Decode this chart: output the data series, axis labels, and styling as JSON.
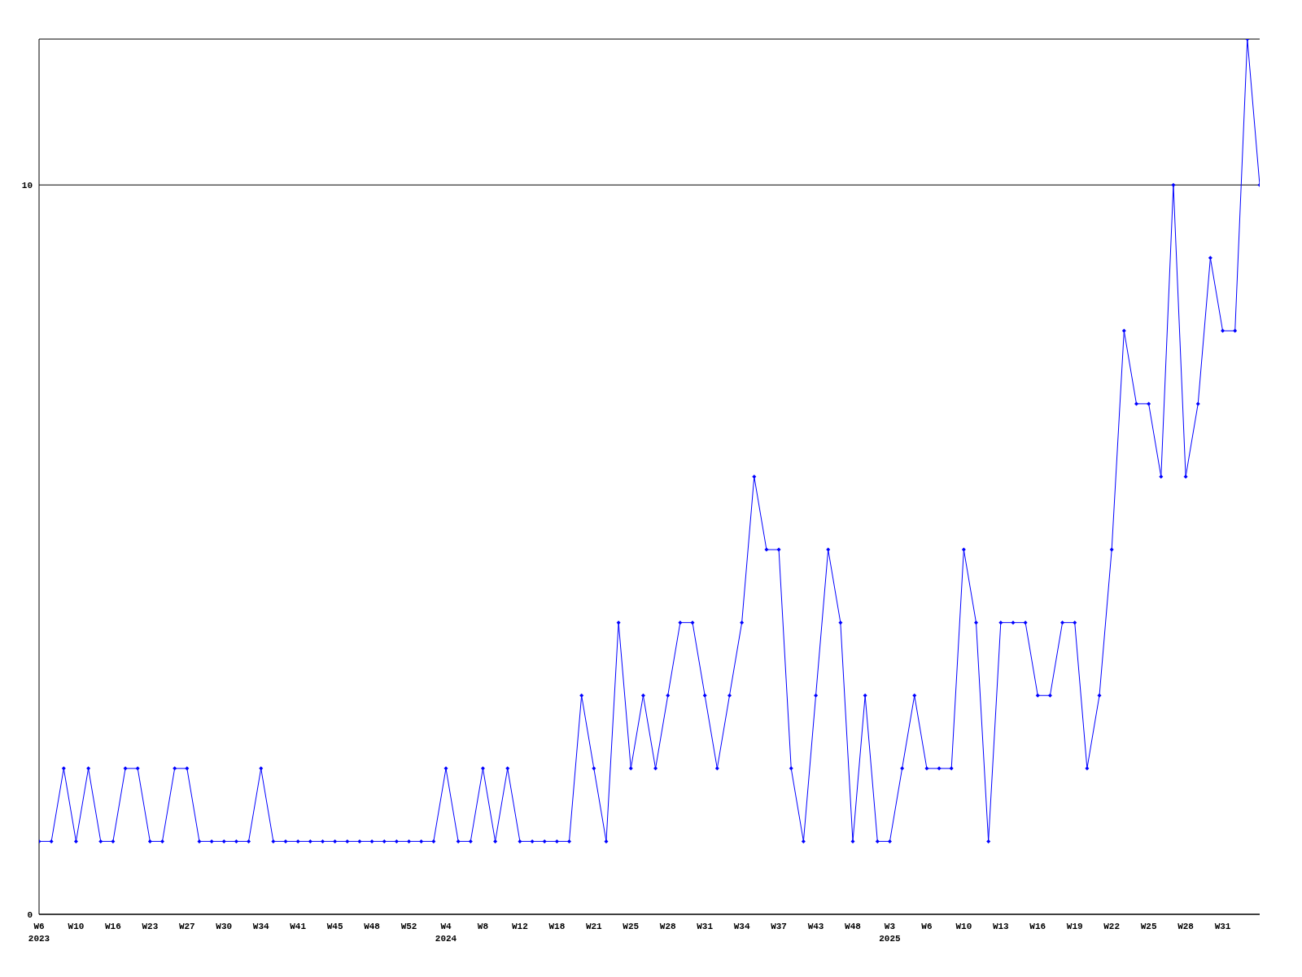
{
  "chart_data": {
    "type": "line",
    "categories": [
      "W6\n2023",
      null,
      null,
      "W10",
      null,
      null,
      "W16",
      null,
      null,
      "W23",
      null,
      null,
      "W27",
      null,
      null,
      "W30",
      null,
      null,
      "W34",
      null,
      null,
      "W41",
      null,
      null,
      "W45",
      null,
      null,
      "W48",
      null,
      null,
      "W52",
      null,
      null,
      "W4\n2024",
      null,
      null,
      "W8",
      null,
      null,
      "W12",
      null,
      null,
      "W18",
      null,
      null,
      "W21",
      null,
      null,
      "W25",
      null,
      null,
      "W28",
      null,
      null,
      "W31",
      null,
      null,
      "W34",
      null,
      null,
      "W37",
      null,
      null,
      "W43",
      null,
      null,
      "W48",
      null,
      null,
      "W3\n2025",
      null,
      null,
      "W6",
      null,
      null,
      "W10",
      null,
      null,
      "W13",
      null,
      null,
      "W16",
      null,
      null,
      "W19",
      null,
      null,
      "W22",
      null,
      null,
      "W25",
      null,
      null,
      "W28",
      null,
      null,
      "W31",
      null,
      null,
      null
    ],
    "series": [
      {
        "color": "#0000ff",
        "values": [
          1,
          1,
          2,
          1,
          2,
          1,
          1,
          2,
          2,
          1,
          1,
          2,
          2,
          1,
          1,
          1,
          1,
          1,
          2,
          1,
          1,
          1,
          1,
          1,
          1,
          1,
          1,
          1,
          1,
          1,
          1,
          1,
          1,
          2,
          1,
          1,
          2,
          1,
          2,
          1,
          1,
          1,
          1,
          1,
          3,
          2,
          1,
          4,
          2,
          3,
          2,
          3,
          4,
          4,
          3,
          2,
          3,
          4,
          6,
          5,
          5,
          2,
          1,
          3,
          5,
          4,
          1,
          3,
          1,
          1,
          2,
          3,
          2,
          2,
          2,
          5,
          4,
          1,
          4,
          4,
          4,
          3,
          3,
          4,
          4,
          2,
          3,
          5,
          8,
          7,
          7,
          6,
          10,
          6,
          7,
          9,
          8,
          8,
          12,
          10
        ]
      }
    ],
    "ylim": [
      0,
      12
    ],
    "yticks": [
      0,
      10
    ],
    "grid": "y",
    "marker": "diamond",
    "line_style": "solid"
  }
}
